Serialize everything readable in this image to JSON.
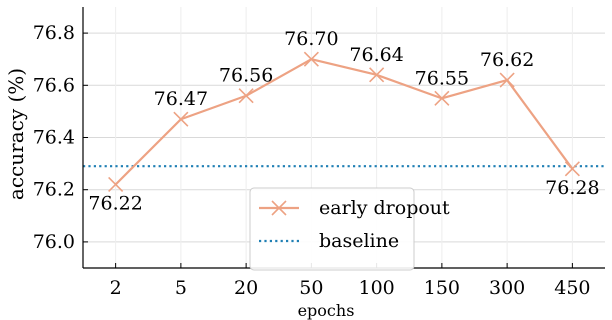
{
  "chart_data": {
    "type": "line",
    "xlabel": "epochs",
    "ylabel": "accuracy (%)",
    "categories": [
      "2",
      "5",
      "20",
      "50",
      "100",
      "150",
      "300",
      "450"
    ],
    "ylim": [
      75.9,
      76.9
    ],
    "yticks": [
      "76.0",
      "76.2",
      "76.4",
      "76.6",
      "76.8"
    ],
    "grid": true,
    "legend_position": "lower-center",
    "series": [
      {
        "name": "early dropout",
        "values": [
          76.22,
          76.47,
          76.56,
          76.7,
          76.64,
          76.55,
          76.62,
          76.28
        ],
        "labels": [
          "76.22",
          "76.47",
          "76.56",
          "76.70",
          "76.64",
          "76.55",
          "76.62",
          "76.28"
        ],
        "color": "#eda283",
        "marker": "x"
      },
      {
        "name": "baseline",
        "value": 76.29,
        "color": "#1f7fb4",
        "style": "dotted"
      }
    ]
  }
}
